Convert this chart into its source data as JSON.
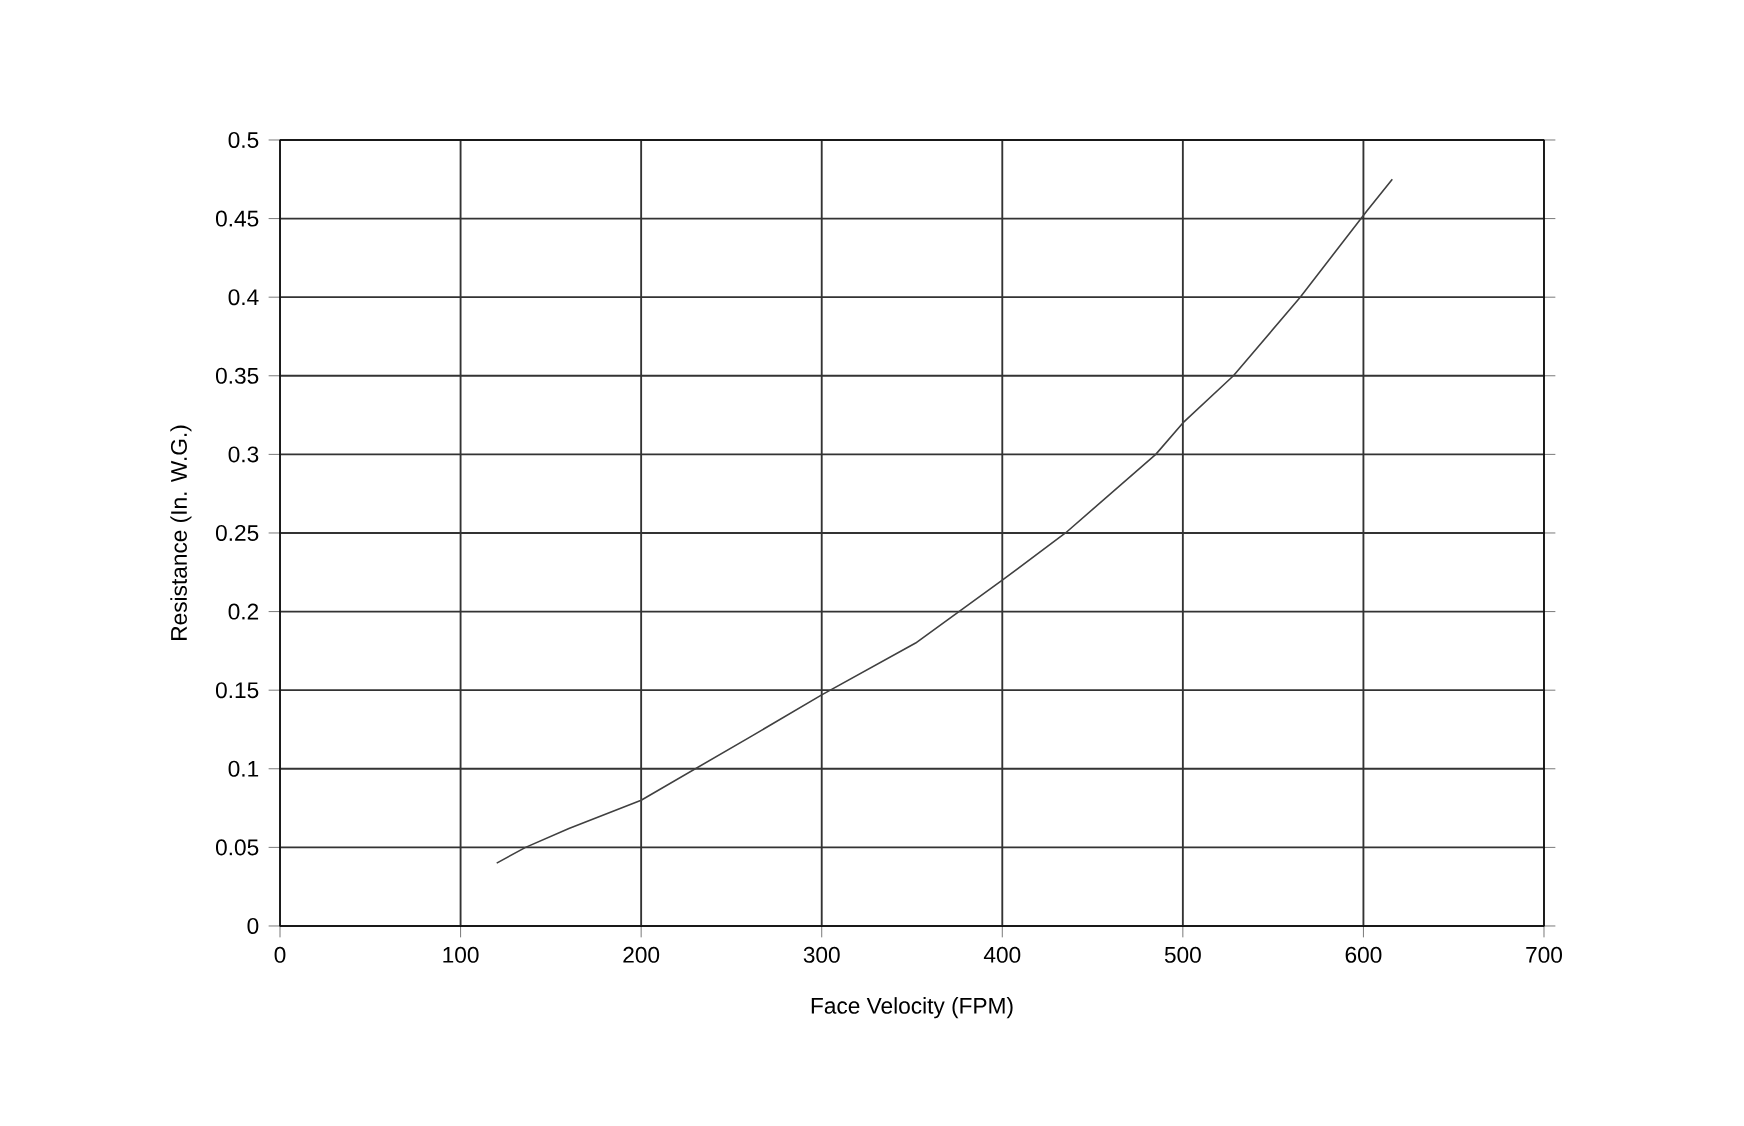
{
  "chart_data": {
    "type": "line",
    "xlabel": "Face Velocity (FPM)",
    "ylabel": "Resistance (In. W.G.)",
    "x": [
      120,
      136,
      160,
      200,
      230,
      260,
      300,
      352,
      400,
      435,
      485,
      500,
      528,
      565,
      602,
      616
    ],
    "values": [
      0.04,
      0.05,
      0.062,
      0.08,
      0.1,
      0.12,
      0.147,
      0.18,
      0.22,
      0.25,
      0.3,
      0.32,
      0.35,
      0.4,
      0.455,
      0.475
    ],
    "color": "#404040",
    "xlim": [
      0,
      700
    ],
    "ylim": [
      0,
      0.5
    ],
    "xticks": [
      0,
      100,
      200,
      300,
      400,
      500,
      600,
      700
    ],
    "yticks": [
      {
        "value": 0,
        "label": "0"
      },
      {
        "value": 0.05,
        "label": "0.05"
      },
      {
        "value": 0.1,
        "label": "0.1"
      },
      {
        "value": 0.15,
        "label": "0.15"
      },
      {
        "value": 0.2,
        "label": "0.2"
      },
      {
        "value": 0.25,
        "label": "0.25"
      },
      {
        "value": 0.3,
        "label": "0.3"
      },
      {
        "value": 0.35,
        "label": "0.35"
      },
      {
        "value": 0.4,
        "label": "0.4"
      },
      {
        "value": 0.45,
        "label": "0.45"
      },
      {
        "value": 0.5,
        "label": "0.5"
      }
    ],
    "grid": true,
    "marker": "none",
    "line_style": "solid"
  }
}
